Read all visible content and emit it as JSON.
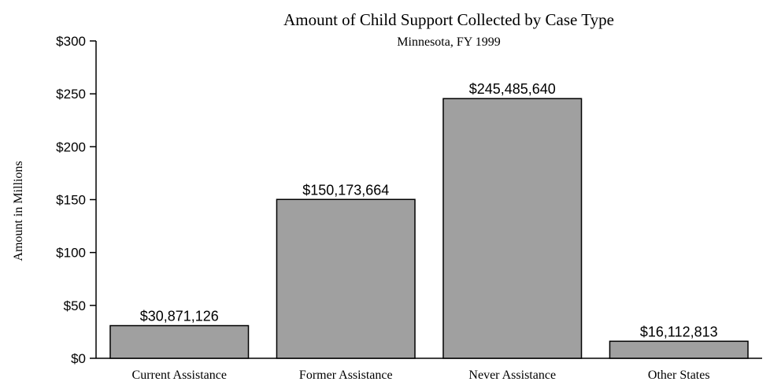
{
  "chart_data": {
    "type": "bar",
    "title": "Amount of Child Support Collected by Case Type",
    "subtitle": "Minnesota, FY 1999",
    "xlabel": "",
    "ylabel": "Amount in Millions",
    "categories": [
      "Current Assistance",
      "Former Assistance",
      "Never Assistance",
      "Other States"
    ],
    "values": [
      30.871126,
      150.173664,
      245.48564,
      16.112813
    ],
    "value_labels": [
      "$30,871,126",
      "$150,173,664",
      "$245,485,640",
      "$16,112,813"
    ],
    "ylim": [
      0,
      300
    ],
    "yticks": [
      0,
      50,
      100,
      150,
      200,
      250,
      300
    ],
    "ytick_labels": [
      "$0",
      "$50",
      "$100",
      "$150",
      "$200",
      "$250",
      "$300"
    ],
    "grid": false,
    "legend": "none",
    "bar_color": "#a0a0a0",
    "bar_edge_color": "#000000"
  }
}
